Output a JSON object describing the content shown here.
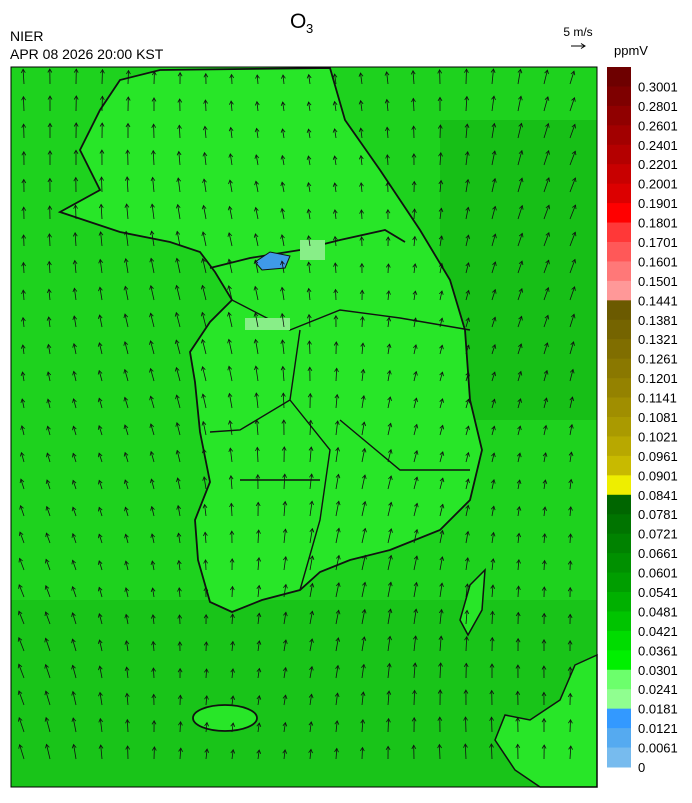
{
  "header": {
    "title": {
      "text": "O",
      "subscript": "3"
    },
    "agency": "NIER",
    "timestamp": "APR 08 2026 20:00 KST"
  },
  "wind_reference": {
    "label": "5 m/s"
  },
  "legend": {
    "unit": "ppmV",
    "labels": [
      "0.3001",
      "0.2801",
      "0.2601",
      "0.2401",
      "0.2201",
      "0.2001",
      "0.1901",
      "0.1801",
      "0.1701",
      "0.1601",
      "0.1501",
      "0.1441",
      "0.1381",
      "0.1321",
      "0.1261",
      "0.1201",
      "0.1141",
      "0.1081",
      "0.1021",
      "0.0961",
      "0.0901",
      "0.0841",
      "0.0781",
      "0.0721",
      "0.0661",
      "0.0601",
      "0.0541",
      "0.0481",
      "0.0421",
      "0.0361",
      "0.0301",
      "0.0241",
      "0.0181",
      "0.0121",
      "0.0061",
      "0"
    ],
    "colors": [
      "#6e0000",
      "#7e0000",
      "#900000",
      "#a20000",
      "#b40000",
      "#c80000",
      "#dc0000",
      "#ff0000",
      "#ff3838",
      "#ff5858",
      "#ff7878",
      "#ff9898",
      "#6b5a00",
      "#756400",
      "#806e00",
      "#8a7800",
      "#948200",
      "#a08e00",
      "#aa9a00",
      "#b8a800",
      "#c8ba00",
      "#eeee00",
      "#006600",
      "#007400",
      "#008200",
      "#009000",
      "#009e00",
      "#00b000",
      "#00c400",
      "#00dc00",
      "#00f000",
      "#6cff6c",
      "#90ff90",
      "#3399ff",
      "#55aaf0",
      "#77bbee",
      "#99c8ee"
    ]
  }
}
